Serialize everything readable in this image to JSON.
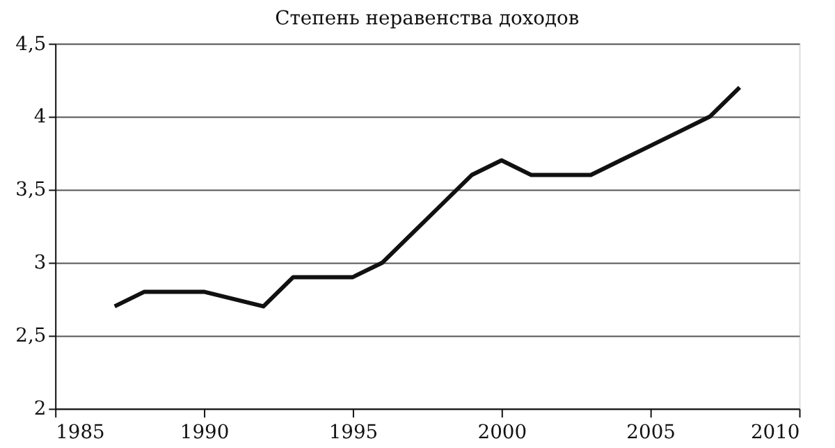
{
  "chart_data": {
    "type": "line",
    "title": "Степень неравенства доходов",
    "x": [
      1987,
      1988,
      1989,
      1990,
      1991,
      1992,
      1993,
      1994,
      1995,
      1996,
      1997,
      1998,
      1999,
      2000,
      2001,
      2002,
      2003,
      2004,
      2005,
      2006,
      2007,
      2008
    ],
    "series": [
      {
        "color": "#111111",
        "values": [
          2.7,
          2.8,
          2.8,
          2.8,
          2.75,
          2.7,
          2.9,
          2.9,
          2.9,
          3.0,
          3.2,
          3.4,
          3.6,
          3.7,
          3.6,
          3.6,
          3.6,
          3.7,
          3.8,
          3.9,
          4.0,
          4.2
        ]
      }
    ],
    "xlim": [
      1985,
      2010
    ],
    "xticks": [
      1985,
      1990,
      1995,
      2000,
      2005,
      2010
    ],
    "ylim": [
      2,
      4.5
    ],
    "yticks": [
      2,
      {
        "value": 2.5,
        "label": "2,5"
      },
      3,
      {
        "value": 3.5,
        "label": "3,5"
      },
      4,
      {
        "value": 4.5,
        "label": "4,5"
      }
    ],
    "grid": "y",
    "legend": false,
    "marker": "none",
    "line_style": "solid"
  }
}
